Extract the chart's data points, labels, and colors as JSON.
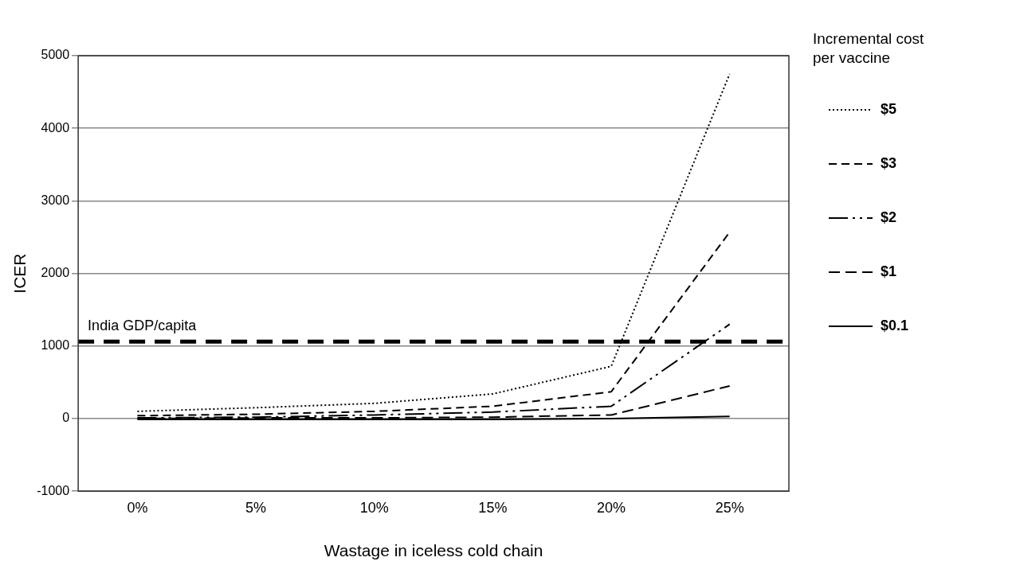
{
  "chart_data": {
    "type": "line",
    "xlabel": "Wastage in iceless cold chain",
    "ylabel": "ICER",
    "legend_title": "Incremental cost per vaccine",
    "categories": [
      "0%",
      "5%",
      "10%",
      "15%",
      "20%",
      "25%"
    ],
    "series": [
      {
        "name": "$5",
        "color": "#000000",
        "line_style": "dotted",
        "values": [
          100,
          150,
          210,
          340,
          720,
          4750
        ]
      },
      {
        "name": "$3",
        "color": "#000000",
        "line_style": "dashed",
        "values": [
          40,
          60,
          100,
          170,
          370,
          2570
        ]
      },
      {
        "name": "$2",
        "color": "#000000",
        "line_style": "dashed",
        "values": [
          10,
          20,
          50,
          90,
          170,
          1300
        ]
      },
      {
        "name": "$1",
        "color": "#000000",
        "line_style": "dashed",
        "values": [
          0,
          10,
          10,
          20,
          50,
          450
        ]
      },
      {
        "name": "$0.1",
        "color": "#000000",
        "line_style": "solid",
        "values": [
          -10,
          -10,
          -10,
          -10,
          0,
          30
        ]
      }
    ],
    "ylim": [
      -1000,
      5000
    ],
    "yticks": [
      -1000,
      0,
      1000,
      2000,
      3000,
      4000,
      5000
    ],
    "ref_lines": [
      {
        "axis": "y",
        "value": 1060,
        "label": "India GDP/capita",
        "color": "#000000",
        "line_style": "dashed"
      }
    ],
    "grid": "y",
    "legend": "right",
    "marker": "none"
  }
}
